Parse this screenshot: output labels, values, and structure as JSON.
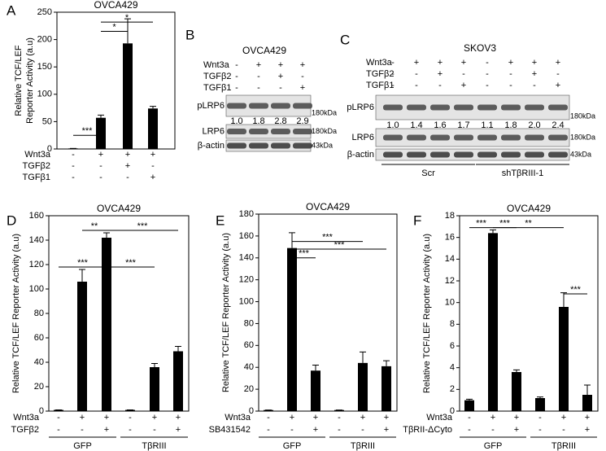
{
  "chart_data": [
    {
      "type": "bar",
      "panel": "A",
      "title": "OVCA429",
      "ylabel": [
        "Relative TCF/LEF",
        "Reporter Activity (a.u)"
      ],
      "ylim": [
        0,
        250
      ],
      "yticks": [
        0,
        50,
        100,
        150,
        200,
        250
      ],
      "color": "#000000",
      "values": [
        1,
        57,
        193,
        74
      ],
      "errors": [
        0,
        5,
        45,
        4
      ],
      "conditions": [
        {
          "name": "Wnt3a",
          "values": [
            "-",
            "+",
            "+",
            "+"
          ]
        },
        {
          "name": "TGFβ2",
          "values": [
            "-",
            "-",
            "+",
            "-"
          ]
        },
        {
          "name": "TGFβ1",
          "values": [
            "-",
            "-",
            "-",
            "+"
          ]
        }
      ],
      "groups": [],
      "significance": [
        "***",
        "*",
        "*"
      ]
    },
    {
      "type": "bar",
      "panel": "D",
      "title": "OVCA429",
      "ylabel": [
        "Relative TCF/LEF Reporter Activity (a.u)"
      ],
      "ylim": [
        0,
        160
      ],
      "yticks": [
        0,
        20,
        40,
        60,
        80,
        100,
        120,
        140,
        160
      ],
      "color": "#000000",
      "values": [
        1,
        106,
        142,
        1,
        36,
        49
      ],
      "errors": [
        0,
        10,
        4,
        0,
        3,
        4
      ],
      "conditions": [
        {
          "name": "Wnt3a",
          "values": [
            "-",
            "+",
            "+",
            "-",
            "+",
            "+"
          ]
        },
        {
          "name": "TGFβ2",
          "values": [
            "-",
            "-",
            "+",
            "-",
            "-",
            "+"
          ]
        }
      ],
      "groups": [
        "GFP",
        "TβRIII"
      ],
      "significance": [
        "***",
        "**",
        "***",
        "***"
      ]
    },
    {
      "type": "bar",
      "panel": "E",
      "title": "OVCA429",
      "ylabel": [
        "Relative TCF/LEF Reporter Activity (a.u)"
      ],
      "ylim": [
        0,
        180
      ],
      "yticks": [
        0,
        20,
        40,
        60,
        80,
        100,
        120,
        140,
        160,
        180
      ],
      "color": "#000000",
      "values": [
        1,
        149,
        37,
        1,
        44,
        41
      ],
      "errors": [
        0,
        14,
        5,
        0,
        10,
        5
      ],
      "conditions": [
        {
          "name": "Wnt3a",
          "values": [
            "-",
            "+",
            "+",
            "-",
            "+",
            "+"
          ]
        },
        {
          "name": "SB431542",
          "values": [
            "-",
            "-",
            "+",
            "-",
            "-",
            "+"
          ]
        }
      ],
      "groups": [
        "GFP",
        "TβRIII"
      ],
      "significance": [
        "***",
        "***",
        "***"
      ]
    },
    {
      "type": "bar",
      "panel": "F",
      "title": "OVCA429",
      "ylabel": [
        "Relative TCF/LEF Reporter Activity (a.u)"
      ],
      "ylim": [
        0,
        18
      ],
      "yticks": [
        0,
        2,
        4,
        6,
        8,
        10,
        12,
        14,
        16,
        18
      ],
      "color": "#000000",
      "values": [
        1,
        16.4,
        3.6,
        1.2,
        9.6,
        1.5
      ],
      "errors": [
        0.1,
        0.3,
        0.2,
        0.1,
        1.3,
        0.9
      ],
      "conditions": [
        {
          "name": "Wnt3a",
          "values": [
            "-",
            "+",
            "+",
            "-",
            "+",
            "+"
          ]
        },
        {
          "name": "TβRII-ΔCyto",
          "values": [
            "-",
            "-",
            "+",
            "-",
            "-",
            "+"
          ]
        }
      ],
      "groups": [
        "GFP",
        "TβRIII"
      ],
      "significance": [
        "***",
        "***",
        "**",
        "***"
      ]
    }
  ],
  "blots": [
    {
      "panel": "B",
      "title": "OVCA429",
      "conditions": [
        {
          "name": "Wnt3a",
          "values": [
            "-",
            "+",
            "+",
            "+"
          ]
        },
        {
          "name": "TGFβ2",
          "values": [
            "-",
            "-",
            "+",
            "-"
          ]
        },
        {
          "name": "TGFβ1",
          "values": [
            "-",
            "-",
            "-",
            "+"
          ]
        }
      ],
      "bands": [
        {
          "name": "pLRP6",
          "size": "180kDa"
        },
        {
          "name": "LRP6",
          "size": "180kDa"
        },
        {
          "name": "β-actin",
          "size": "43kDa"
        }
      ],
      "quantification": [
        "1.0",
        "1.8",
        "2.8",
        "2.9"
      ],
      "groups": []
    },
    {
      "panel": "C",
      "title": "SKOV3",
      "conditions": [
        {
          "name": "Wnt3a",
          "values": [
            "-",
            "+",
            "+",
            "+",
            "-",
            "+",
            "+",
            "+"
          ]
        },
        {
          "name": "TGFβ2",
          "values": [
            "-",
            "-",
            "+",
            "-",
            "-",
            "-",
            "+",
            "-"
          ]
        },
        {
          "name": "TGFβ1",
          "values": [
            "-",
            "-",
            "-",
            "+",
            "-",
            "-",
            "-",
            "+"
          ]
        }
      ],
      "bands": [
        {
          "name": "pLRP6",
          "size": "180kDa"
        },
        {
          "name": "LRP6",
          "size": "180kDa"
        },
        {
          "name": "β-actin",
          "size": "43kDa"
        }
      ],
      "quantification": [
        "1.0",
        "1.4",
        "1.6",
        "1.7",
        "1.1",
        "1.8",
        "2.0",
        "2.4"
      ],
      "groups": [
        "Scr",
        "shTβRIII-1"
      ]
    }
  ]
}
